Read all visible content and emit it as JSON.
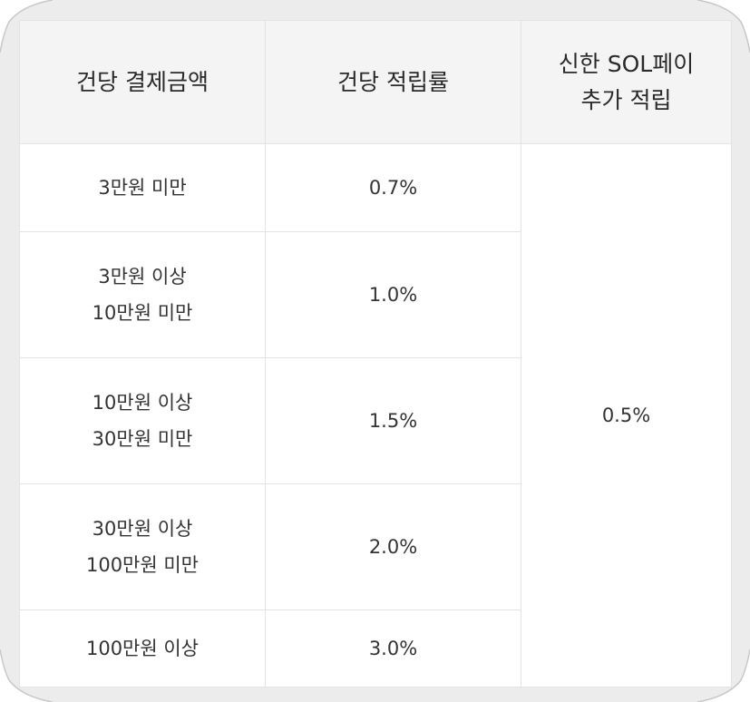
{
  "table": {
    "headers": [
      {
        "lines": [
          "건당 결제금액"
        ]
      },
      {
        "lines": [
          "건당 적립률"
        ]
      },
      {
        "lines": [
          "신한 SOL페이",
          "추가 적립"
        ]
      }
    ],
    "rows": [
      {
        "amount_lines": [
          "3만원 미만"
        ],
        "rate": "0.7%"
      },
      {
        "amount_lines": [
          "3만원 이상",
          "10만원 미만"
        ],
        "rate": "1.0%"
      },
      {
        "amount_lines": [
          "10만원 이상",
          "30만원 미만"
        ],
        "rate": "1.5%"
      },
      {
        "amount_lines": [
          "30만원 이상",
          "100만원 미만"
        ],
        "rate": "2.0%"
      },
      {
        "amount_lines": [
          "100만원 이상"
        ],
        "rate": "3.0%"
      }
    ],
    "sol_pay_extra": "0.5%"
  }
}
